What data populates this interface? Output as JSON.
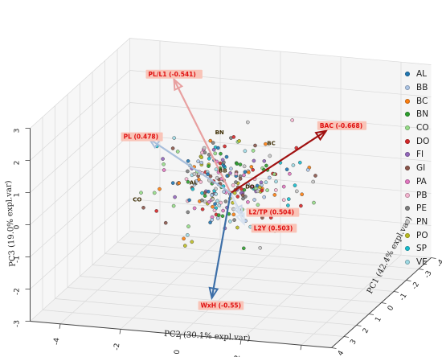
{
  "chart_data": {
    "type": "scatter",
    "projection": "3d",
    "xlabel": "PC1 (42.4% expl.var)",
    "ylabel": "PC2 (30.1% expl.var)",
    "zlabel": "PC3 (19.0% expl.var)",
    "xlim": [
      -4,
      4
    ],
    "ylim": [
      -5,
      5
    ],
    "zlim": [
      -3,
      3
    ],
    "x_ticks": [
      "-4",
      "-3",
      "-2",
      "-1",
      "0",
      "1",
      "2",
      "3",
      "4"
    ],
    "y_ticks": [
      "-4",
      "-2",
      "0",
      "2",
      "4"
    ],
    "z_ticks": [
      "-3",
      "-2",
      "-1",
      "0",
      "1",
      "2",
      "3"
    ],
    "grid": true,
    "legend_position": "right",
    "legend": [
      {
        "name": "AL",
        "color": "#1f77b4"
      },
      {
        "name": "BB",
        "color": "#aec7e8"
      },
      {
        "name": "BC",
        "color": "#ff7f0e"
      },
      {
        "name": "BN",
        "color": "#2ca02c"
      },
      {
        "name": "CO",
        "color": "#98df8a"
      },
      {
        "name": "DO",
        "color": "#d62728"
      },
      {
        "name": "FI",
        "color": "#9467bd"
      },
      {
        "name": "GI",
        "color": "#8c564b"
      },
      {
        "name": "PA",
        "color": "#e377c2"
      },
      {
        "name": "PB",
        "color": "#f7b6d2"
      },
      {
        "name": "PE",
        "color": "#7f7f7f"
      },
      {
        "name": "PN",
        "color": "#c7c7c7"
      },
      {
        "name": "PO",
        "color": "#bcbd22"
      },
      {
        "name": "SP",
        "color": "#17becf"
      },
      {
        "name": "VE",
        "color": "#9edae5"
      }
    ],
    "loadings": [
      {
        "label": "PL/L1 (-0.541)",
        "color": "#e8a0a0",
        "vector": [
          -1.5,
          -2.5,
          2.8
        ]
      },
      {
        "label": "BAC (-0.668)",
        "color": "#a01010",
        "vector": [
          0.8,
          3.5,
          2.5
        ]
      },
      {
        "label": "PL (0.478)",
        "color": "#a9bfdc",
        "vector": [
          -1.2,
          -3.2,
          1.0
        ]
      },
      {
        "label": "L2/TP (0.504)",
        "color": "#c9d6e8",
        "vector": [
          1.0,
          0.8,
          -0.3
        ]
      },
      {
        "label": "L2Y (0.503)",
        "color": "#d8e2ef",
        "vector": [
          1.1,
          0.9,
          -0.5
        ]
      },
      {
        "label": "WxH (-0.55)",
        "color": "#3d6fa8",
        "vector": [
          0.3,
          -0.5,
          -3.2
        ]
      }
    ],
    "group_labels": [
      "BN",
      "BC",
      "DO",
      "AL",
      "BB",
      "CO",
      "DO"
    ],
    "points_note": ""
  }
}
